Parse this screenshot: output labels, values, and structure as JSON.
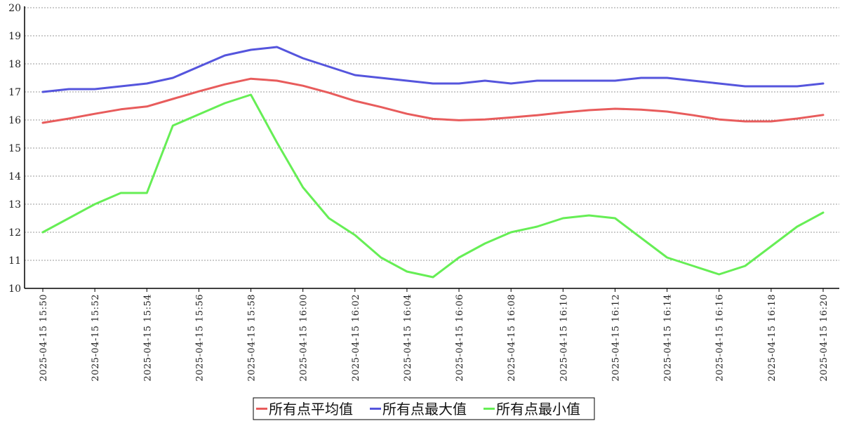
{
  "chart_data": {
    "type": "line",
    "title": "",
    "xlabel": "",
    "ylabel": "",
    "ylim": [
      10,
      20
    ],
    "yticks": [
      10,
      11,
      12,
      13,
      14,
      15,
      16,
      17,
      18,
      19,
      20
    ],
    "grid": "horizontal-dotted",
    "legend_position": "bottom-center",
    "x": [
      "2025-04-15 15:50",
      "2025-04-15 15:51",
      "2025-04-15 15:52",
      "2025-04-15 15:53",
      "2025-04-15 15:54",
      "2025-04-15 15:55",
      "2025-04-15 15:56",
      "2025-04-15 15:57",
      "2025-04-15 15:58",
      "2025-04-15 15:59",
      "2025-04-15 16:00",
      "2025-04-15 16:01",
      "2025-04-15 16:02",
      "2025-04-15 16:03",
      "2025-04-15 16:04",
      "2025-04-15 16:05",
      "2025-04-15 16:06",
      "2025-04-15 16:07",
      "2025-04-15 16:08",
      "2025-04-15 16:09",
      "2025-04-15 16:10",
      "2025-04-15 16:11",
      "2025-04-15 16:12",
      "2025-04-15 16:13",
      "2025-04-15 16:14",
      "2025-04-15 16:15",
      "2025-04-15 16:16",
      "2025-04-15 16:17",
      "2025-04-15 16:18",
      "2025-04-15 16:19",
      "2025-04-15 16:20"
    ],
    "xtick_labels": [
      "2025-04-15 15:50",
      "2025-04-15 15:52",
      "2025-04-15 15:54",
      "2025-04-15 15:56",
      "2025-04-15 15:58",
      "2025-04-15 16:00",
      "2025-04-15 16:02",
      "2025-04-15 16:04",
      "2025-04-15 16:06",
      "2025-04-15 16:08",
      "2025-04-15 16:10",
      "2025-04-15 16:12",
      "2025-04-15 16:14",
      "2025-04-15 16:16",
      "2025-04-15 16:18",
      "2025-04-15 16:20"
    ],
    "series": [
      {
        "name": "所有点平均值",
        "color": "#e85c5c",
        "values": [
          15.9,
          16.05,
          16.22,
          16.38,
          16.48,
          16.75,
          17.02,
          17.27,
          17.47,
          17.4,
          17.22,
          16.97,
          16.68,
          16.46,
          16.22,
          16.04,
          15.99,
          16.02,
          16.09,
          16.17,
          16.27,
          16.35,
          16.4,
          16.37,
          16.3,
          16.17,
          16.02,
          15.95,
          15.95,
          16.05,
          16.18
        ]
      },
      {
        "name": "所有点最大值",
        "color": "#5555dd",
        "values": [
          17.0,
          17.1,
          17.1,
          17.2,
          17.3,
          17.5,
          17.9,
          18.3,
          18.5,
          18.6,
          18.2,
          17.9,
          17.6,
          17.5,
          17.4,
          17.3,
          17.3,
          17.4,
          17.3,
          17.4,
          17.4,
          17.4,
          17.4,
          17.5,
          17.5,
          17.4,
          17.3,
          17.2,
          17.2,
          17.2,
          17.3
        ]
      },
      {
        "name": "所有点最小值",
        "color": "#66ee55",
        "values": [
          12.0,
          12.5,
          13.0,
          13.4,
          13.4,
          15.8,
          16.2,
          16.6,
          16.9,
          15.2,
          13.6,
          12.5,
          11.9,
          11.1,
          10.6,
          10.4,
          11.1,
          11.6,
          12.0,
          12.2,
          12.5,
          12.6,
          12.5,
          11.8,
          11.1,
          10.8,
          10.5,
          10.8,
          11.5,
          12.2,
          12.7
        ]
      }
    ]
  }
}
